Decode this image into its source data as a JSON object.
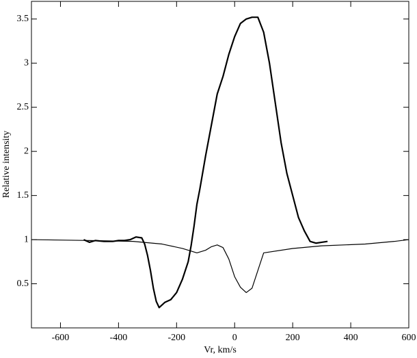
{
  "chart_data": {
    "type": "line",
    "xlabel": "Vr, km/s",
    "ylabel": "Relative intensity",
    "xlim": [
      -700,
      600
    ],
    "xticks": [
      -600,
      -400,
      -200,
      0,
      200,
      400,
      600
    ],
    "ylim": [
      0,
      3.7
    ],
    "yticks": [
      0.5,
      1,
      1.5,
      2,
      2.5,
      3,
      3.5
    ],
    "series": [
      {
        "color": "#000000",
        "width": 2.2,
        "x": [
          -520,
          -500,
          -480,
          -450,
          -420,
          -400,
          -380,
          -360,
          -340,
          -320,
          -310,
          -300,
          -290,
          -280,
          -270,
          -260,
          -250,
          -240,
          -220,
          -200,
          -180,
          -160,
          -150,
          -140,
          -130,
          -120,
          -100,
          -80,
          -60,
          -40,
          -20,
          0,
          20,
          40,
          60,
          80,
          100,
          120,
          140,
          160,
          180,
          200,
          220,
          240,
          260,
          280,
          300,
          320
        ],
        "values": [
          1.0,
          0.97,
          0.99,
          0.98,
          0.98,
          0.99,
          0.99,
          1.0,
          1.03,
          1.02,
          0.95,
          0.82,
          0.65,
          0.45,
          0.3,
          0.23,
          0.26,
          0.29,
          0.32,
          0.4,
          0.55,
          0.75,
          0.93,
          1.15,
          1.4,
          1.57,
          1.95,
          2.3,
          2.65,
          2.85,
          3.1,
          3.3,
          3.45,
          3.5,
          3.52,
          3.52,
          3.35,
          3.0,
          2.55,
          2.1,
          1.75,
          1.5,
          1.25,
          1.1,
          0.98,
          0.96,
          0.97,
          0.98
        ]
      },
      {
        "color": "#000000",
        "width": 1.2,
        "x": [
          -700,
          -500,
          -350,
          -250,
          -180,
          -150,
          -130,
          -100,
          -80,
          -60,
          -40,
          -20,
          0,
          20,
          40,
          60,
          80,
          100,
          200,
          300,
          450,
          550,
          600
        ],
        "values": [
          1.0,
          0.99,
          0.98,
          0.95,
          0.9,
          0.87,
          0.85,
          0.88,
          0.92,
          0.94,
          0.91,
          0.78,
          0.58,
          0.46,
          0.4,
          0.45,
          0.65,
          0.85,
          0.9,
          0.93,
          0.95,
          0.98,
          1.0
        ]
      }
    ]
  }
}
